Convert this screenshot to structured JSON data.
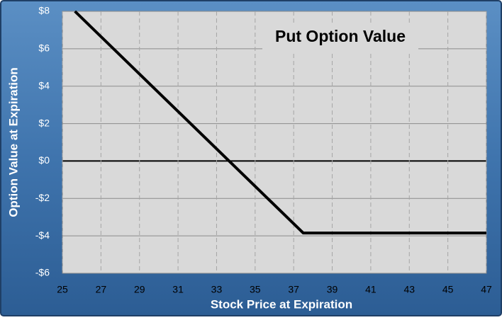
{
  "chart_data": {
    "type": "line",
    "title": "Put Option Value",
    "x_label": "Stock Price at Expiration",
    "y_label": "Option Value at Expiration",
    "series": [
      {
        "name": "Put Option Value",
        "color": "#000000",
        "x": [
          25.65,
          37.5,
          47
        ],
        "values": [
          8,
          -3.85,
          -3.85
        ]
      }
    ],
    "xlim": [
      25,
      47
    ],
    "xticks": [
      25,
      27,
      29,
      31,
      33,
      35,
      37,
      39,
      41,
      43,
      45,
      47
    ],
    "ylim": [
      -6,
      8
    ],
    "yticks": [
      {
        "value": -6,
        "label": "-$6"
      },
      {
        "value": -4,
        "label": "-$4"
      },
      {
        "value": -2,
        "label": "-$2"
      },
      {
        "value": 0,
        "label": "$0"
      },
      {
        "value": 2,
        "label": "$2"
      },
      {
        "value": 4,
        "label": "$4"
      },
      {
        "value": 6,
        "label": "$6"
      },
      {
        "value": 8,
        "label": "$8"
      }
    ],
    "grid": true
  }
}
